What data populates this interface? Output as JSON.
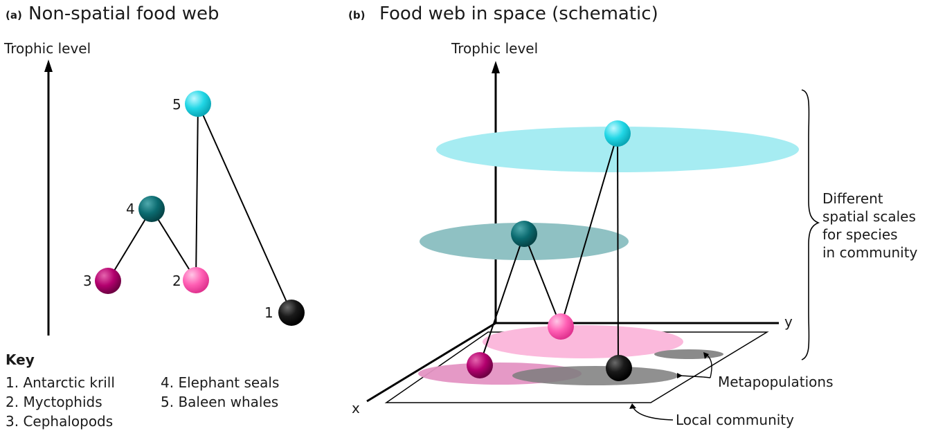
{
  "panel_a": {
    "letter": "(a)",
    "title": "Non-spatial food web",
    "axis_label": "Trophic level",
    "node_labels": [
      "1",
      "2",
      "3",
      "4",
      "5"
    ],
    "key": {
      "heading": "Key",
      "items": [
        "1. Antarctic krill",
        "2. Myctophids",
        "3. Cephalopods",
        "4. Elephant seals",
        "5. Baleen whales"
      ]
    }
  },
  "panel_b": {
    "letter": "(b)",
    "title": "Food web in space (schematic)",
    "axis_label": "Trophic level",
    "y_label": "y",
    "x_label": "x",
    "bracket_text": [
      "Different",
      "spatial scales",
      "for species",
      "in community"
    ],
    "metapopulations_label": "Metapopulations",
    "local_community_label": "Local community"
  },
  "colors": {
    "krill": "#0d0d0d",
    "myctophids": "#ff5fb4",
    "cephalopods": "#b3006e",
    "elephant_seals": "#0b6b70",
    "baleen_whales": "#1fd6e6",
    "cyan_disc": "#a6ecf2",
    "teal_disc": "#8fc1c3",
    "pink_disc": "#fbb9dc",
    "magenta_disc": "#e493c3",
    "grey_disc": "#8a8a8a"
  }
}
